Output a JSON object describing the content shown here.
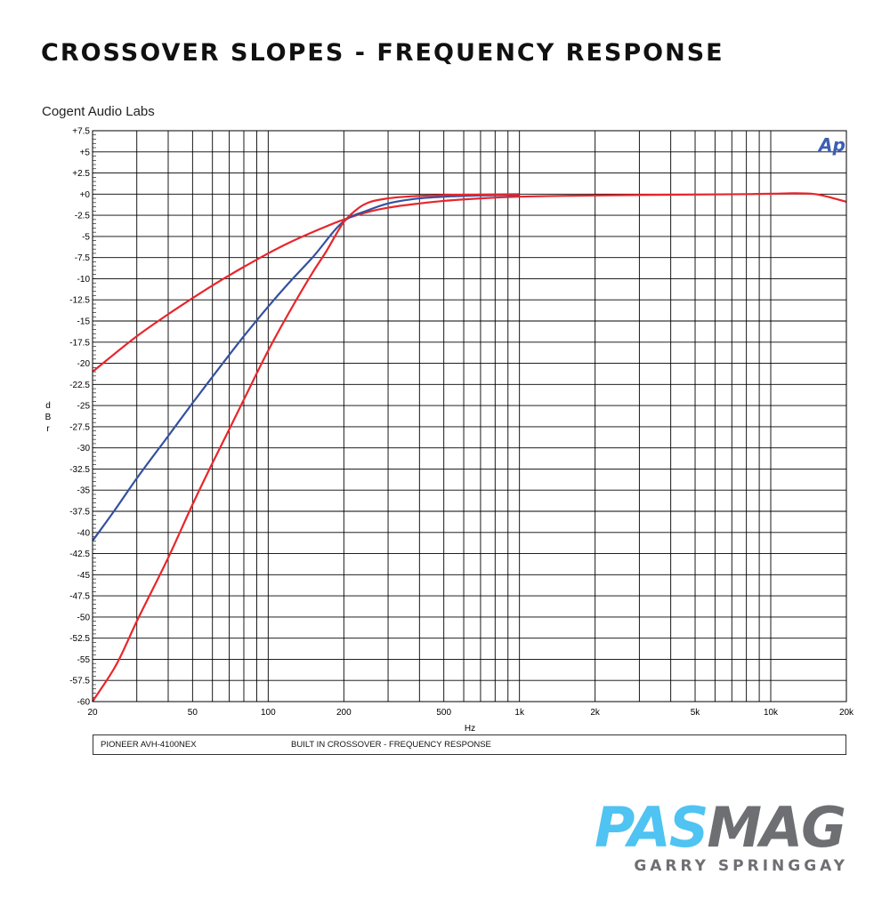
{
  "header": {
    "title": "CROSSOVER SLOPES - FREQUENCY RESPONSE",
    "lab": "Cogent Audio Labs"
  },
  "footer": {
    "device": "PIONEER AVH-4100NEX",
    "description": "BUILT IN CROSSOVER  -  FREQUENCY RESPONSE"
  },
  "brand": {
    "logo_part1": "PAS",
    "logo_part2": "MAG",
    "author": "GARRY SPRINGGAY",
    "ap_logo": "Ap"
  },
  "colors": {
    "red": "#e8262b",
    "blue": "#3450a0",
    "grid": "#000000",
    "ap_logo": "#3e5eb3",
    "pas": "#4fc3f2",
    "mag": "#6d6f72"
  },
  "chart_data": {
    "type": "line",
    "xscale": "log",
    "xlabel": "Hz",
    "ylabel": "dBr",
    "xlim": [
      20,
      20000
    ],
    "ylim": [
      -60,
      7.5
    ],
    "grid": true,
    "x_ticks": [
      20,
      50,
      100,
      200,
      500,
      1000,
      2000,
      5000,
      10000,
      20000
    ],
    "x_tick_labels": [
      "20",
      "50",
      "100",
      "200",
      "500",
      "1k",
      "2k",
      "5k",
      "10k",
      "20k"
    ],
    "y_ticks": [
      7.5,
      5,
      2.5,
      0,
      -2.5,
      -5,
      -7.5,
      -10,
      -12.5,
      -15,
      -17.5,
      -20,
      -22.5,
      -25,
      -27.5,
      -30,
      -32.5,
      -35,
      -37.5,
      -40,
      -42.5,
      -45,
      -47.5,
      -50,
      -52.5,
      -55,
      -57.5,
      -60
    ],
    "y_tick_labels": [
      "+7.5",
      "+5",
      "+2.5",
      "+0",
      "-2.5",
      "-5",
      "-7.5",
      "-10",
      "-12.5",
      "-15",
      "-17.5",
      "-20",
      "-22.5",
      "-25",
      "-27.5",
      "-30",
      "-32.5",
      "-35",
      "-37.5",
      "-40",
      "-42.5",
      "-45",
      "-47.5",
      "-50",
      "-52.5",
      "-55",
      "-57.5",
      "-60"
    ],
    "series": [
      {
        "color": "#e8262b",
        "x": [
          20,
          30,
          40,
          50,
          60,
          70,
          80,
          100,
          120,
          150,
          200,
          250,
          300,
          400,
          500,
          700,
          1000,
          2000,
          3000,
          5000,
          8000,
          10000,
          15000,
          20000
        ],
        "y": [
          -21,
          -16.8,
          -14.2,
          -12.3,
          -10.8,
          -9.6,
          -8.6,
          -7,
          -5.8,
          -4.5,
          -3,
          -2.1,
          -1.6,
          -1.1,
          -0.8,
          -0.5,
          -0.3,
          -0.15,
          -0.1,
          -0.05,
          0,
          0.05,
          0,
          -0.9
        ]
      },
      {
        "color": "#3450a0",
        "x": [
          20,
          25,
          30,
          40,
          50,
          60,
          70,
          80,
          100,
          120,
          150,
          200,
          250,
          300,
          400,
          500,
          700,
          1000
        ],
        "y": [
          -41,
          -37,
          -33.6,
          -28.6,
          -24.7,
          -21.6,
          -19,
          -16.8,
          -13.3,
          -10.6,
          -7.5,
          -3.2,
          -1.9,
          -1.1,
          -0.5,
          -0.3,
          -0.15,
          -0.1
        ]
      },
      {
        "color": "#e8262b",
        "x": [
          20,
          25,
          30,
          40,
          50,
          60,
          70,
          80,
          100,
          120,
          150,
          170,
          200,
          230,
          250,
          300,
          400,
          500,
          700,
          1000
        ],
        "y": [
          -60,
          -55.5,
          -50.5,
          -43,
          -36.7,
          -31.8,
          -27.8,
          -24.3,
          -18.5,
          -14.2,
          -9.3,
          -6.8,
          -3.3,
          -1.6,
          -1,
          -0.5,
          -0.2,
          -0.1,
          -0.05,
          0
        ]
      }
    ]
  }
}
